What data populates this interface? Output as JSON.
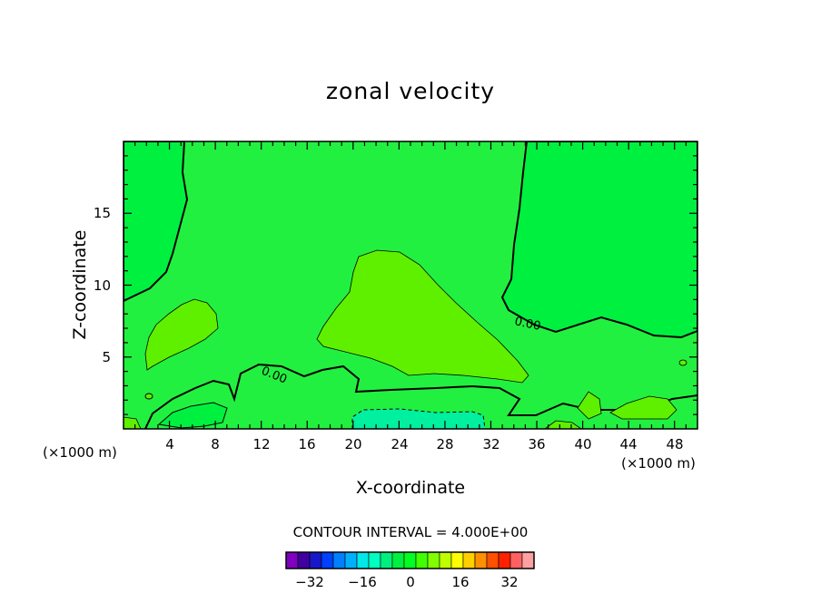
{
  "chart_data": {
    "type": "contour",
    "title": "zonal velocity",
    "xlabel": "X-coordinate",
    "ylabel": "Z-coordinate",
    "x_unit": "(×1000 m)",
    "z_unit": "(×1000 m)",
    "xlim": [
      0,
      50
    ],
    "ylim": [
      0,
      20
    ],
    "x_ticks": [
      "4",
      "8",
      "12",
      "16",
      "20",
      "24",
      "28",
      "32",
      "36",
      "40",
      "44",
      "48"
    ],
    "y_ticks": [
      "5",
      "10",
      "15"
    ],
    "contour_interval_text": "CONTOUR INTERVAL = 4.000E+00",
    "contour_labels": [
      "0.00",
      "0.00"
    ],
    "colorbar": {
      "levels": [
        -36,
        -32,
        -28,
        -24,
        -20,
        -16,
        -12,
        -8,
        -4,
        0,
        4,
        8,
        12,
        16,
        20,
        24,
        28,
        32,
        36
      ],
      "colors": [
        "#8000c0",
        "#4000a0",
        "#1818c8",
        "#0040ff",
        "#0080ff",
        "#00b0ff",
        "#00e8e8",
        "#00ffc0",
        "#00f080",
        "#00f040",
        "#00ff20",
        "#40ff00",
        "#80ff00",
        "#c0ff00",
        "#ffff00",
        "#ffd000",
        "#ff9000",
        "#ff5000",
        "#ff2000",
        "#ff6060",
        "#ffa0a0"
      ],
      "tick_labels": [
        "−32",
        "−16",
        "0",
        "16",
        "32"
      ],
      "tick_values": [
        -32,
        -16,
        0,
        16,
        32
      ]
    },
    "regions": [
      {
        "name": "background",
        "value_range": [
          0,
          4
        ],
        "color": "#22f040"
      },
      {
        "name": "left-upper-zero-band",
        "value_range": [
          -4,
          0
        ],
        "color": "#00f040"
      },
      {
        "name": "right-upper-zero-band",
        "value_range": [
          -4,
          0
        ],
        "color": "#00f040"
      },
      {
        "name": "central-maximum",
        "value_range": [
          4,
          8
        ],
        "color": "#5ff000"
      },
      {
        "name": "left-maximum",
        "value_range": [
          4,
          8
        ],
        "color": "#5ff000"
      },
      {
        "name": "surface-minimum",
        "value_range": [
          -8,
          -4
        ],
        "color": "#00f0a0"
      }
    ]
  }
}
